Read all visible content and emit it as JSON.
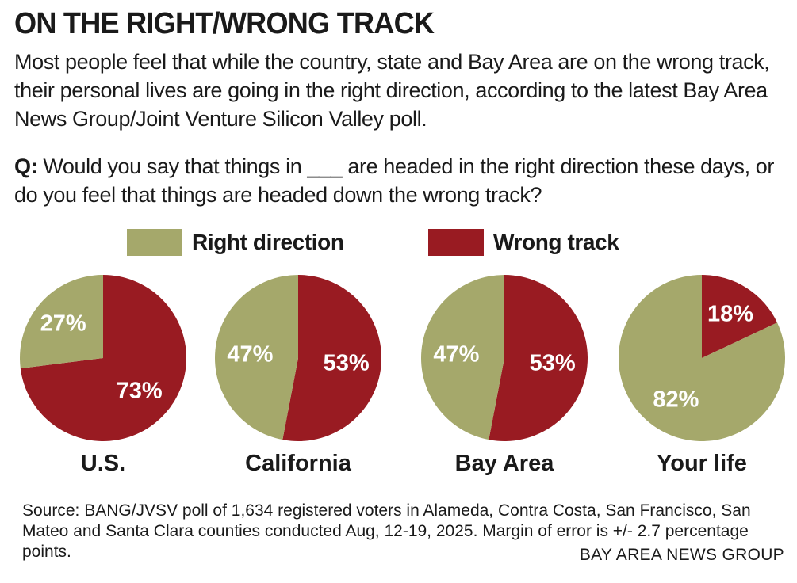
{
  "title": "ON THE RIGHT/WRONG TRACK",
  "intro": "Most people feel that while the country, state and Bay Area are on the wrong track, their personal lives are going in the right direction, according to the latest Bay Area News Group/Joint Venture Silicon Valley poll.",
  "question": {
    "label": "Q:",
    "text": "Would you say that things in ___ are headed in the right direction these days, or do you feel that things are headed down the wrong track?"
  },
  "legend": {
    "right_label": "Right direction",
    "wrong_label": "Wrong track"
  },
  "colors": {
    "right": "#a5a86b",
    "wrong": "#991b22"
  },
  "chart_data": {
    "type": "pie",
    "series": [
      {
        "name": "U.S.",
        "right": 27,
        "wrong": 73,
        "right_label": "27%",
        "wrong_label": "73%"
      },
      {
        "name": "California",
        "right": 47,
        "wrong": 53,
        "right_label": "47%",
        "wrong_label": "53%"
      },
      {
        "name": "Bay Area",
        "right": 47,
        "wrong": 53,
        "right_label": "47%",
        "wrong_label": "53%"
      },
      {
        "name": "Your life",
        "right": 82,
        "wrong": 18,
        "right_label": "82%",
        "wrong_label": "18%"
      }
    ],
    "legend": [
      "Right direction",
      "Wrong track"
    ]
  },
  "source": "Source: BANG/JVSV poll of 1,634 registered voters in Alameda, Contra Costa, San Francisco, San Mateo and Santa Clara counties conducted Aug, 12-19, 2025. Margin of error is +/- 2.7 percentage points.",
  "credit": "BAY AREA NEWS GROUP"
}
